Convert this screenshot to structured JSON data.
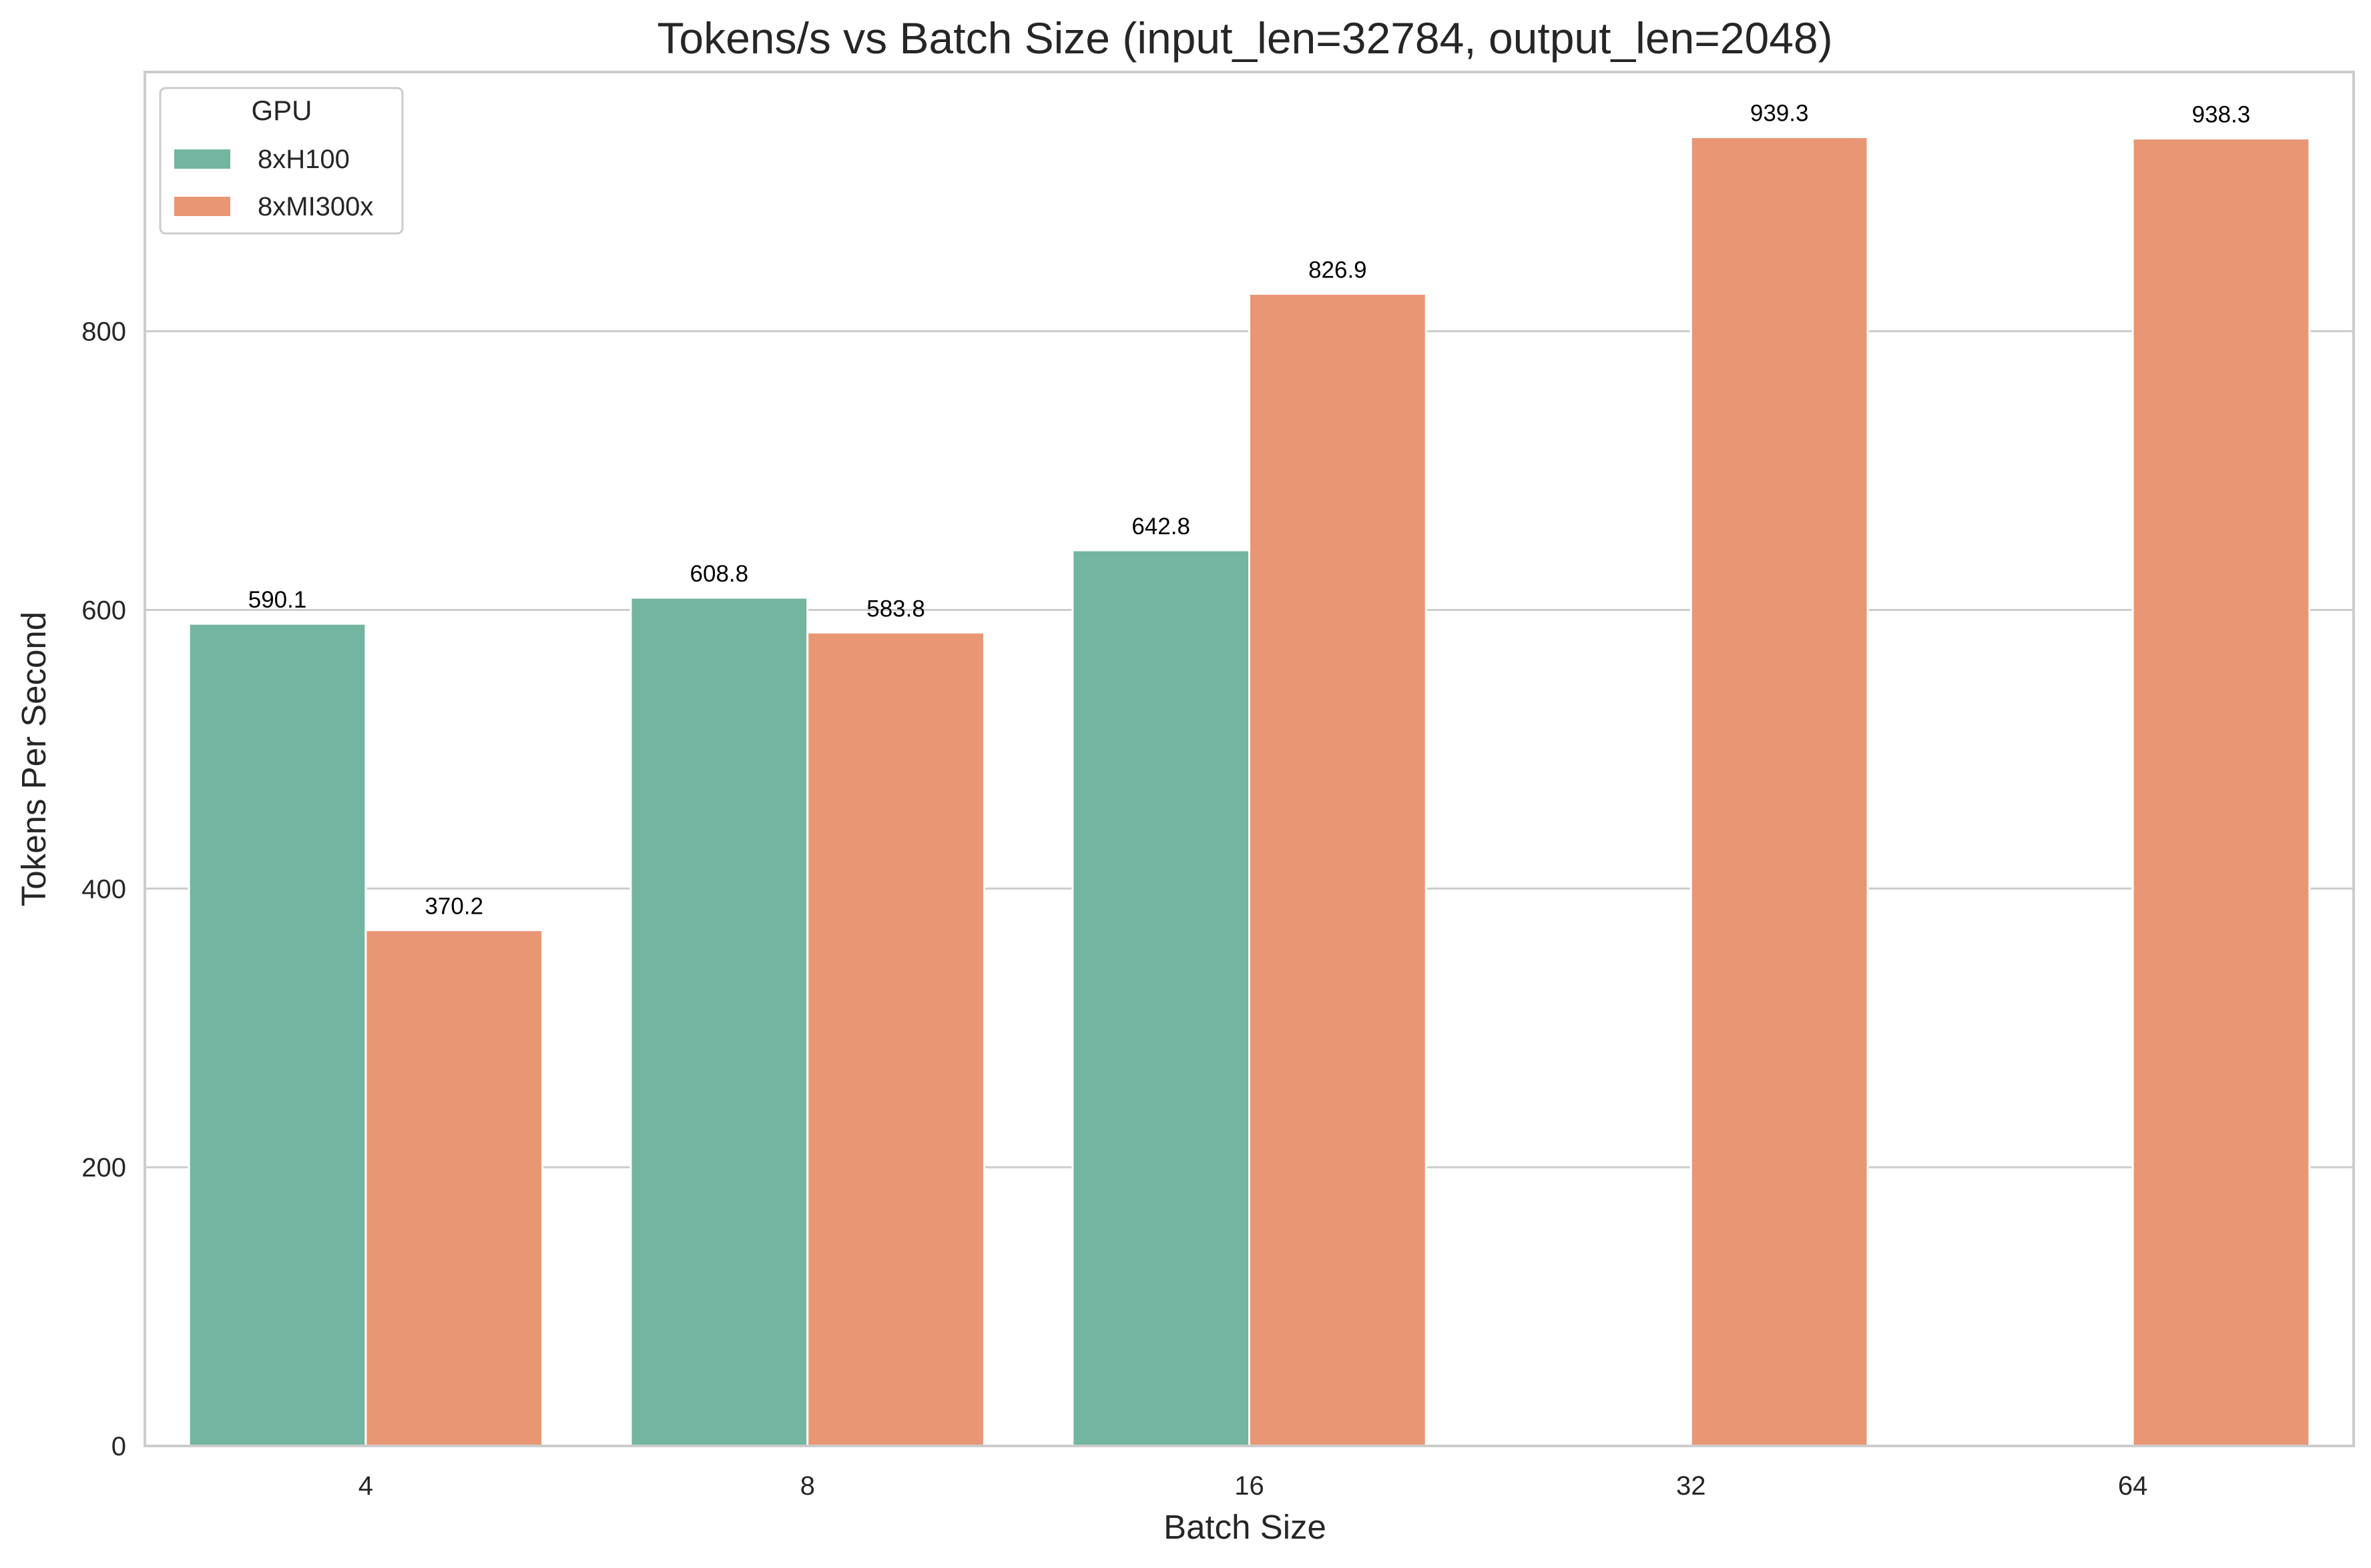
{
  "chart_data": {
    "type": "bar",
    "title": "Tokens/s vs Batch Size (input_len=32784, output_len=2048)",
    "xlabel": "Batch Size",
    "ylabel": "Tokens Per Second",
    "categories": [
      "4",
      "8",
      "16",
      "32",
      "64"
    ],
    "ylim": [
      0,
      986
    ],
    "yticks": [
      0,
      200,
      400,
      600,
      800
    ],
    "grid": "horizontal",
    "legend": {
      "title": "GPU",
      "placement": "top-left"
    },
    "series": [
      {
        "name": "8xH100",
        "color": "#73b5a0",
        "values": [
          590.1,
          608.8,
          642.8,
          null,
          null
        ],
        "labels": [
          "590.1",
          "608.8",
          "642.8",
          "",
          ""
        ]
      },
      {
        "name": "8xMI300x",
        "color": "#e99675",
        "values": [
          370.2,
          583.8,
          826.9,
          939.3,
          938.3
        ],
        "labels": [
          "370.2",
          "583.8",
          "826.9",
          "939.3",
          "938.3"
        ]
      }
    ]
  }
}
